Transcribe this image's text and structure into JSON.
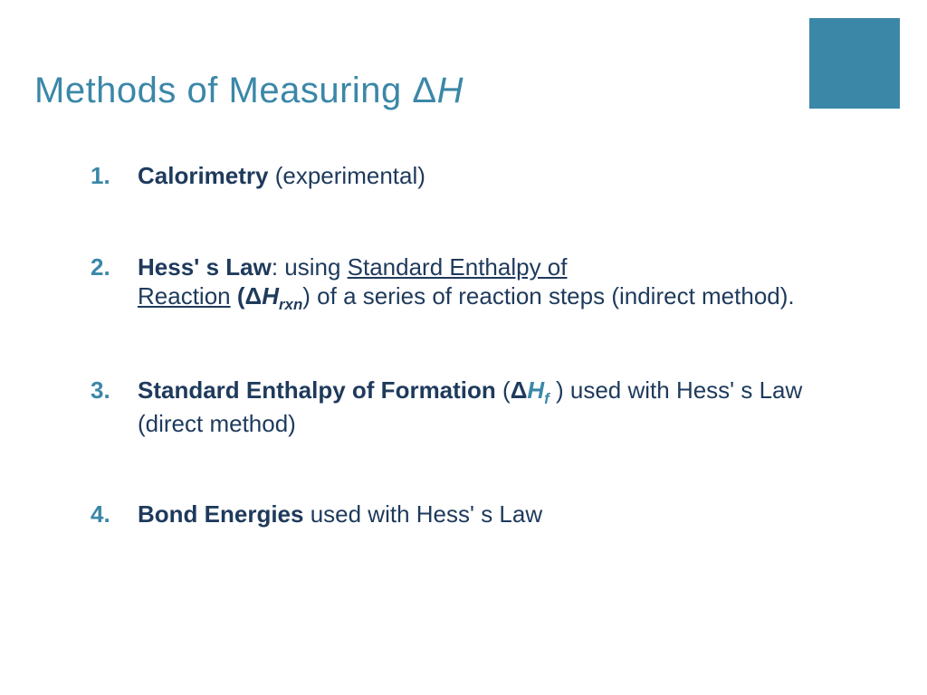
{
  "colors": {
    "accent": "#3b87a8",
    "text": "#1e3a5c",
    "square": "#3b87a8",
    "background": "#ffffff"
  },
  "typography": {
    "title_fontsize": 40,
    "body_fontsize": 26,
    "font_family": "Century Gothic"
  },
  "title": {
    "prefix": "Methods of Measuring ",
    "delta": "Δ",
    "h": "H"
  },
  "items": [
    {
      "num": "1.",
      "bold_lead": "Calorimetry",
      "rest": " (experimental)"
    },
    {
      "num": "2.",
      "bold_lead": "Hess' s Law",
      "after_lead": ": using ",
      "u1": "Standard Enthalpy of ",
      "u2": "Reaction",
      "paren_open": " (",
      "delta": "Δ",
      "h": "H",
      "sub": "rxn",
      "rest": ") of a series of reaction steps (indirect method)."
    },
    {
      "num": "3.",
      "bold_lead": "Standard Enthalpy of Formation",
      "paren_open": " (",
      "delta": "Δ",
      "h": "H",
      "sub": "f",
      "after_paren": " ) used with Hess' s Law (direct method)"
    },
    {
      "num": "4.",
      "bold_lead": "Bond Energies",
      "rest": " used with Hess' s Law"
    }
  ]
}
